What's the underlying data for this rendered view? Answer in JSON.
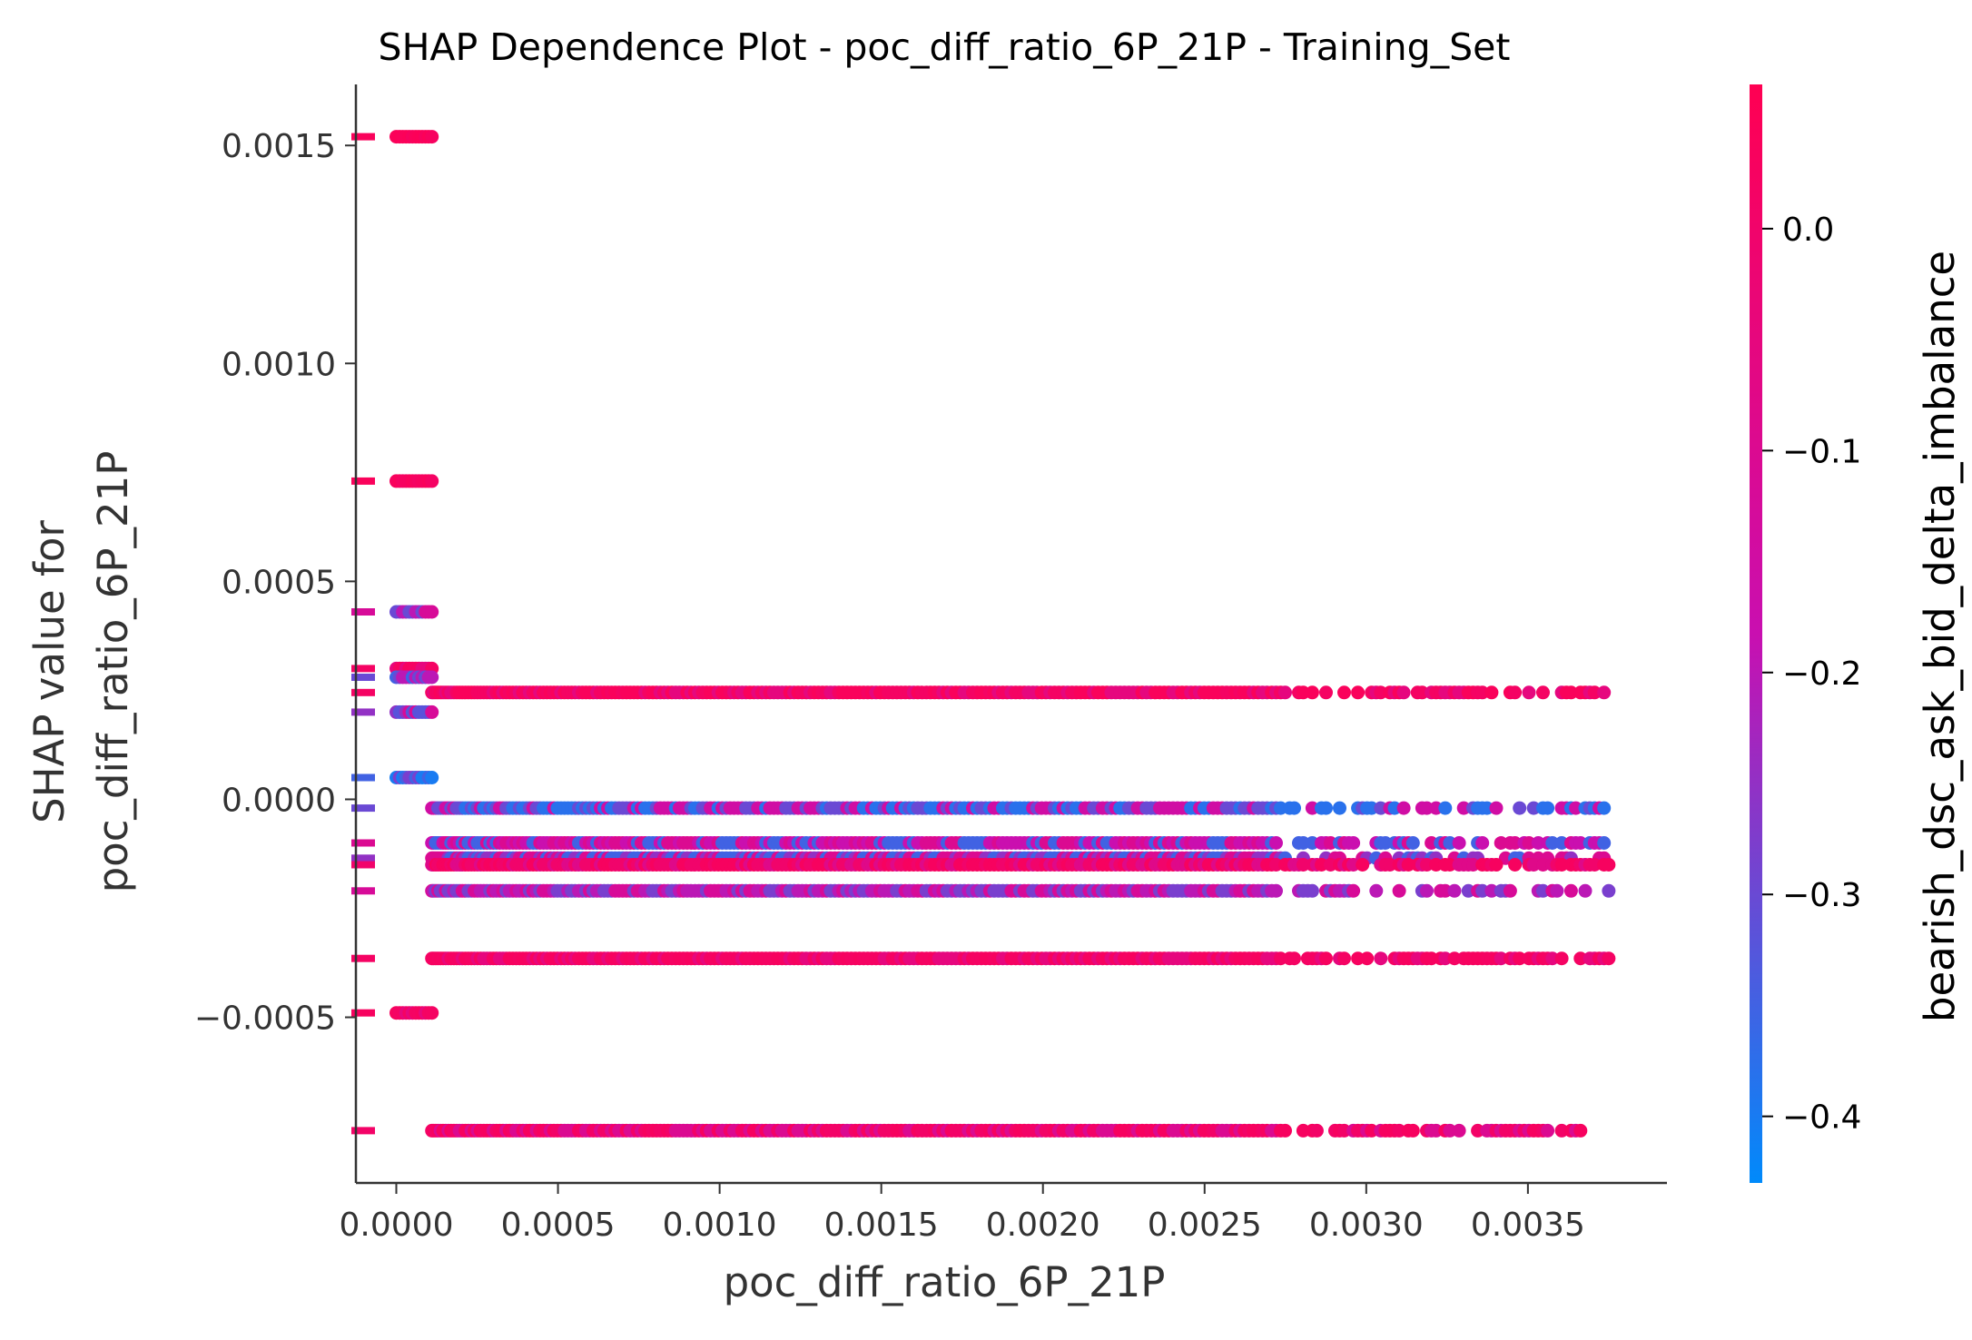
{
  "chart_data": {
    "type": "scatter",
    "title": "SHAP Dependence Plot - poc_diff_ratio_6P_21P - Training_Set",
    "xlabel": "poc_diff_ratio_6P_21P",
    "ylabel_lines": [
      "SHAP value for",
      "poc_diff_ratio_6P_21P"
    ],
    "xlim": [
      -0.000125,
      0.00393
    ],
    "ylim": [
      -0.00088,
      0.00164
    ],
    "x_ticks": [
      0.0,
      0.0005,
      0.001,
      0.0015,
      0.002,
      0.0025,
      0.003,
      0.0035
    ],
    "x_tick_labels": [
      "0.0000",
      "0.0005",
      "0.0010",
      "0.0015",
      "0.0020",
      "0.0025",
      "0.0030",
      "0.0035"
    ],
    "y_ticks": [
      0.0015,
      0.001,
      0.0005,
      0.0,
      -0.0005
    ],
    "y_tick_labels": [
      "0.0015",
      "0.0010",
      "0.0005",
      "0.0000",
      "−0.0005"
    ],
    "colorbar": {
      "label": "bearish_dsc_ask_bid_delta_imbalance",
      "range": [
        -0.43,
        0.065
      ],
      "ticks": [
        0.0,
        -0.1,
        -0.2,
        -0.3,
        -0.4
      ],
      "tick_labels": [
        "0.0",
        "−0.1",
        "−0.2",
        "−0.3",
        "−0.4"
      ],
      "color_low": "#008afb",
      "color_mid": "#c90fb0",
      "color_high": "#ff0052"
    },
    "series": [
      {
        "x_range": [
          0.0,
          0.00011
        ],
        "y": 0.00152,
        "color_values": [
          0.04,
          0.03,
          0.05
        ]
      },
      {
        "x_range": [
          0.0,
          0.00011
        ],
        "y": 0.00073,
        "color_values": [
          0.04,
          0.02,
          0.03
        ]
      },
      {
        "x_range": [
          0.0,
          0.00011
        ],
        "y": 0.00043,
        "color_values": [
          -0.12,
          -0.2,
          -0.3
        ]
      },
      {
        "x_range": [
          0.0,
          0.00011
        ],
        "y": 0.0003,
        "color_values": [
          0.02,
          -0.05,
          0.03
        ]
      },
      {
        "x_range": [
          0.0,
          0.00011
        ],
        "y": 0.00028,
        "color_values": [
          -0.3,
          -0.2,
          -0.35
        ]
      },
      {
        "x_range": [
          0.0,
          0.00011
        ],
        "y": 0.0002,
        "color_values": [
          -0.25,
          -0.32,
          -0.12
        ]
      },
      {
        "x_range": [
          0.0,
          0.00011
        ],
        "y": 5e-05,
        "color_values": [
          -0.35,
          -0.28,
          -0.4
        ]
      },
      {
        "x_range": [
          0.00011,
          0.00375
        ],
        "y": 0.000245,
        "color_values": [
          0.02,
          -0.05,
          0.04
        ]
      },
      {
        "x_range": [
          0.00011,
          0.00375
        ],
        "y": -2e-05,
        "color_values": [
          -0.3,
          -0.15,
          -0.38
        ]
      },
      {
        "x_range": [
          0.00011,
          0.00375
        ],
        "y": -0.0001,
        "color_values": [
          -0.1,
          -0.18,
          -0.35
        ]
      },
      {
        "x_range": [
          0.00011,
          0.00375
        ],
        "y": -0.000135,
        "color_values": [
          -0.25,
          -0.35,
          -0.1
        ]
      },
      {
        "x_range": [
          0.00011,
          0.00375
        ],
        "y": -0.00015,
        "color_values": [
          0.0,
          -0.08,
          0.03
        ]
      },
      {
        "x_range": [
          0.00011,
          0.00375
        ],
        "y": -0.00021,
        "color_values": [
          -0.12,
          -0.2,
          -0.28
        ]
      },
      {
        "x_range": [
          0.00011,
          0.00375
        ],
        "y": -0.000365,
        "color_values": [
          0.02,
          -0.05,
          0.03
        ]
      },
      {
        "x_range": [
          0.0,
          0.00011
        ],
        "y": -0.00049,
        "color_values": [
          0.03,
          -0.05,
          0.02
        ]
      },
      {
        "x_range": [
          0.00011,
          0.00375
        ],
        "y": -0.00076,
        "color_values": [
          0.01,
          -0.1,
          0.03
        ]
      }
    ],
    "grid": false,
    "legend": "none"
  }
}
